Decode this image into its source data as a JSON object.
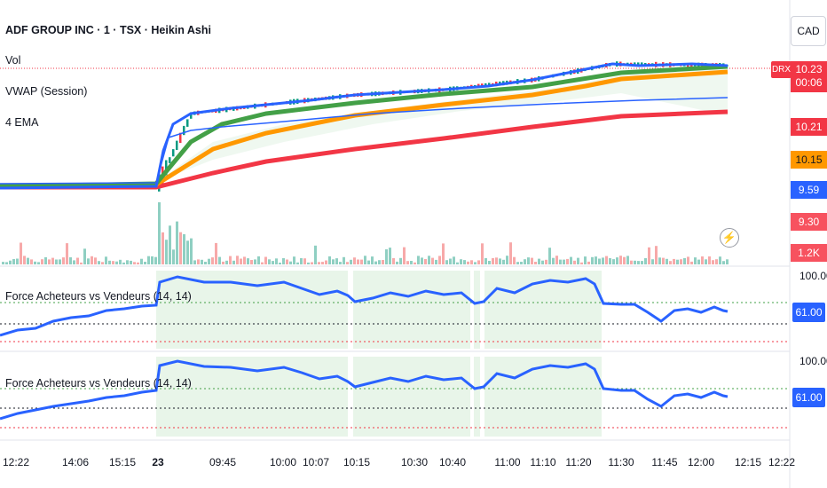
{
  "header": {
    "symbol_line": "ADF GROUP INC · 1 · TSX · Heikin Ashi",
    "currency": "CAD"
  },
  "legend": {
    "vol": "Vol",
    "vwap": "VWAP (Session)",
    "ema": "4 EMA"
  },
  "price_scale": {
    "drx_badge": "DRX",
    "tags": [
      {
        "text": "10.23",
        "sub": "00:06",
        "color": "#f23645"
      },
      {
        "text": "10.21",
        "color": "#f23645"
      },
      {
        "text": "10.15",
        "color": "#ff9800"
      },
      {
        "text": "9.59",
        "color": "#2962ff"
      },
      {
        "text": "9.30",
        "color": "#f7525f"
      },
      {
        "text": "1.2K",
        "color": "#f7525f"
      }
    ]
  },
  "oscillators": [
    {
      "label": "Force Acheteurs vs Vendeurs (14, 14)",
      "top_scale": "100.00",
      "value": "61.00"
    },
    {
      "label": "Force Acheteurs vs Vendeurs (14, 14)",
      "top_scale": "100.00",
      "value": "61.00"
    }
  ],
  "time_axis": {
    "ticks": [
      {
        "label": "12:22",
        "bold": false
      },
      {
        "label": "14:06",
        "bold": false
      },
      {
        "label": "15:15",
        "bold": false
      },
      {
        "label": "23",
        "bold": true
      },
      {
        "label": "09:45",
        "bold": false
      },
      {
        "label": "10:00",
        "bold": false
      },
      {
        "label": "10:07",
        "bold": false
      },
      {
        "label": "10:15",
        "bold": false
      },
      {
        "label": "10:30",
        "bold": false
      },
      {
        "label": "10:40",
        "bold": false
      },
      {
        "label": "11:00",
        "bold": false
      },
      {
        "label": "11:10",
        "bold": false
      },
      {
        "label": "11:20",
        "bold": false
      },
      {
        "label": "11:30",
        "bold": false
      },
      {
        "label": "11:45",
        "bold": false
      },
      {
        "label": "12:00",
        "bold": false
      },
      {
        "label": "12:15",
        "bold": false
      },
      {
        "label": "12:22",
        "bold": false
      }
    ]
  },
  "colors": {
    "ema_green": "#43a047",
    "ema_orange": "#ff9800",
    "ema_red": "#f23645",
    "vwap_blue": "#2962ff",
    "up_candle": "#089981",
    "down_candle": "#f23645",
    "osc_line": "#2962ff"
  },
  "icons": {
    "alert": "lightning-bolt-icon"
  }
}
